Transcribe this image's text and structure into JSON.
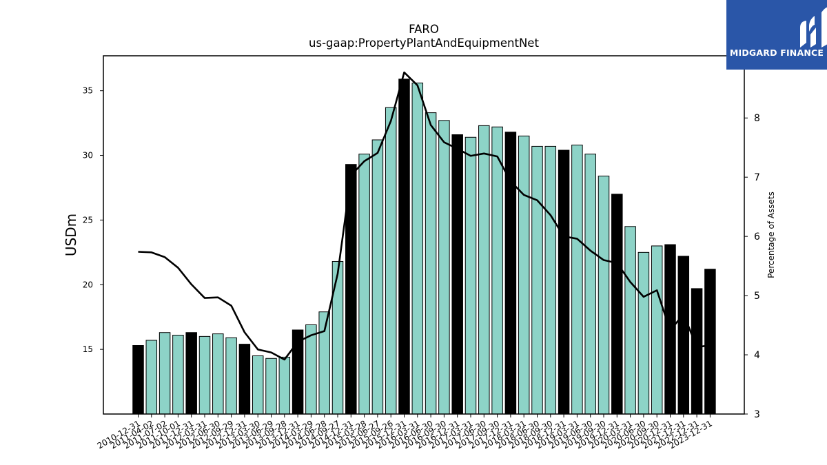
{
  "chart_data": {
    "type": "bar",
    "title": "FARO",
    "subtitle": "us-gaap:PropertyPlantAndEquipmentNet",
    "ylabel": "USDm",
    "y2label": "Percentage of Assets",
    "ylim": [
      10,
      37.7
    ],
    "y2lim": [
      3,
      9.05
    ],
    "yticks": [
      15,
      20,
      25,
      30,
      35
    ],
    "y2ticks": [
      3,
      4,
      5,
      6,
      7,
      8
    ],
    "grid": false,
    "colors": {
      "bar": "#8dd3c7",
      "bar_highlight": "#000000",
      "line": "#000000"
    },
    "categories": [
      "2010-12-31",
      "2011-04-02",
      "2011-07-02",
      "2011-10-01",
      "2011-12-31",
      "2012-03-31",
      "2012-06-30",
      "2012-09-29",
      "2012-12-31",
      "2013-03-30",
      "2013-06-29",
      "2013-09-28",
      "2013-12-31",
      "2014-03-29",
      "2014-06-28",
      "2014-09-27",
      "2014-12-31",
      "2015-03-28",
      "2015-06-27",
      "2015-09-26",
      "2015-12-31",
      "2016-03-31",
      "2016-06-30",
      "2016-09-30",
      "2016-12-31",
      "2017-03-31",
      "2017-06-30",
      "2017-09-30",
      "2017-12-31",
      "2018-03-31",
      "2018-06-30",
      "2018-09-30",
      "2018-12-31",
      "2019-03-31",
      "2019-06-30",
      "2019-09-30",
      "2019-12-31",
      "2020-03-31",
      "2020-06-30",
      "2020-09-30",
      "2020-12-31",
      "2021-12-31",
      "2022-12-31",
      "2023-12-31"
    ],
    "series": [
      {
        "type": "bar",
        "values": [
          15.3,
          15.7,
          16.3,
          16.1,
          16.3,
          16.0,
          16.2,
          15.9,
          15.4,
          14.5,
          14.3,
          14.4,
          16.5,
          16.9,
          17.9,
          21.8,
          29.3,
          30.1,
          31.2,
          33.7,
          35.9,
          35.6,
          33.3,
          32.7,
          31.6,
          31.4,
          32.3,
          32.2,
          31.8,
          31.5,
          30.7,
          30.7,
          30.4,
          30.8,
          30.1,
          28.4,
          27.0,
          24.5,
          22.5,
          23.0,
          23.1,
          22.2,
          19.7,
          21.2
        ],
        "highlight": [
          true,
          false,
          false,
          false,
          true,
          false,
          false,
          false,
          true,
          false,
          false,
          false,
          true,
          false,
          false,
          false,
          true,
          false,
          false,
          false,
          true,
          false,
          false,
          false,
          true,
          false,
          false,
          false,
          true,
          false,
          false,
          false,
          true,
          false,
          false,
          false,
          true,
          false,
          false,
          false,
          true,
          true,
          true,
          true
        ]
      },
      {
        "type": "line",
        "axis": "right",
        "values": [
          5.74,
          5.73,
          5.65,
          5.47,
          5.19,
          4.96,
          4.97,
          4.83,
          4.38,
          4.09,
          4.04,
          3.92,
          4.22,
          4.33,
          4.4,
          5.37,
          7.03,
          7.27,
          7.41,
          7.95,
          8.77,
          8.55,
          7.88,
          7.59,
          7.48,
          7.36,
          7.4,
          7.35,
          6.93,
          6.7,
          6.61,
          6.36,
          6.0,
          5.96,
          5.76,
          5.6,
          5.55,
          5.23,
          4.98,
          5.09,
          4.41,
          4.69,
          4.13,
          4.16
        ]
      }
    ]
  },
  "logo": {
    "text": "MIDGARD FINANCE"
  }
}
